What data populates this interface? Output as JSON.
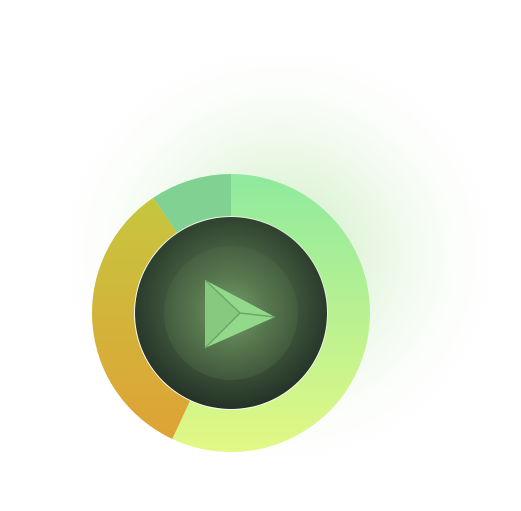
{
  "colors": {
    "glow": "#b6e8a8",
    "segment_top": "#7fd08f",
    "segment_right_start": "#8eea9e",
    "segment_right_end": "#dcf484",
    "segment_left_start": "#c7c23b",
    "segment_left_end": "#dca437",
    "disc_outer": "#445a3f",
    "disc_inner": "#4f6e48",
    "disc_edge": "#1f2a22",
    "play_icon": "#94d88a",
    "play_icon_shade": "#7cc077"
  },
  "icon": {
    "name": "play-icon"
  }
}
